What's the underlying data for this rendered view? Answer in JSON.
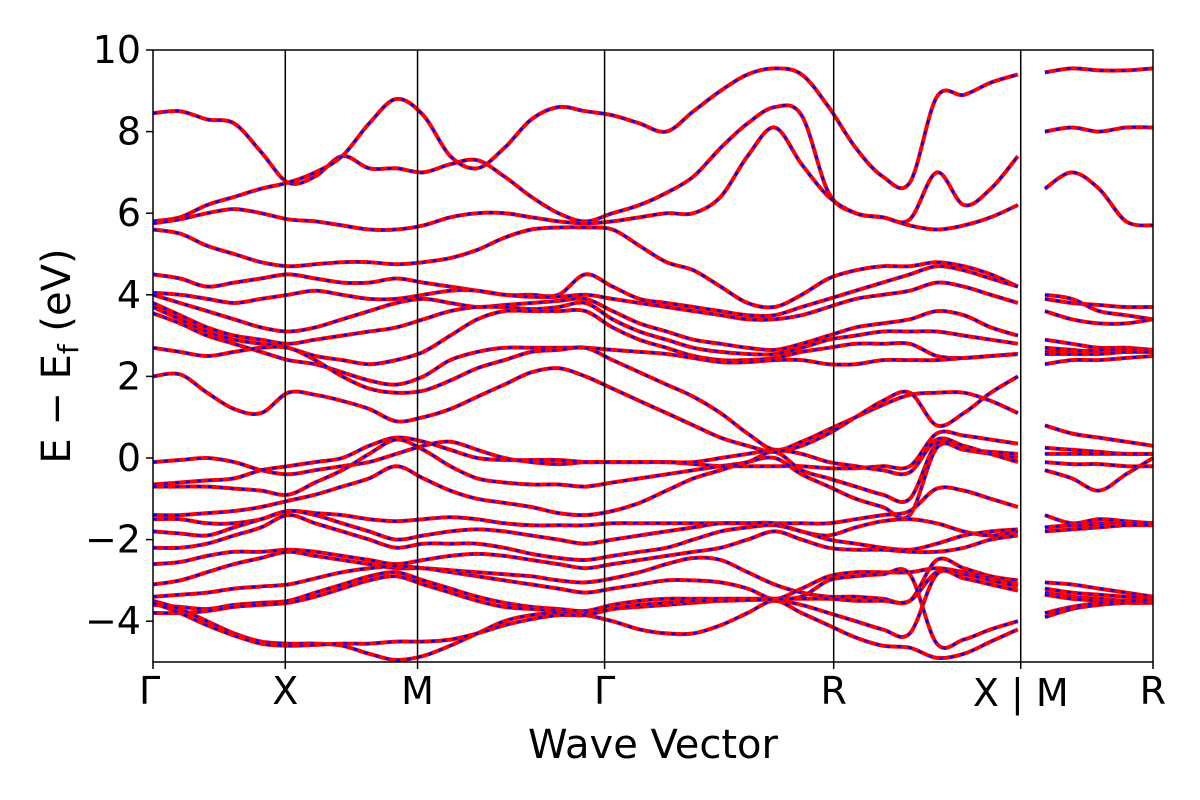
{
  "chart_data": {
    "type": "line",
    "title": "",
    "xlabel": "Wave Vector",
    "ylabel": {
      "prefix": "E − E",
      "subscript": "f",
      "suffix": " (eV)"
    },
    "ylim": [
      -5,
      10
    ],
    "yticks": [
      10,
      8,
      6,
      4,
      2,
      0,
      -2,
      -4
    ],
    "ytick_labels": [
      "10",
      "8",
      "6",
      "4",
      "2",
      "0",
      "−2",
      "−4"
    ],
    "grid": false,
    "legend": "none",
    "colors": {
      "line_solid": "#ff0000",
      "line_dash": "#0000ff",
      "axis": "#000000"
    },
    "kpath": {
      "labels": [
        "Γ",
        "X",
        "M",
        "Γ",
        "R",
        "X | M",
        "R"
      ],
      "positions": [
        0,
        0.5,
        1.0,
        1.707,
        2.573,
        3.28,
        3.78
      ],
      "segment_breaks": [
        3.28
      ]
    },
    "bands": [
      [
        8.45,
        8.5,
        8.3,
        8.2,
        7.5,
        6.75,
        6.9,
        7.4,
        7.1,
        7.1,
        7.0,
        7.2,
        7.3,
        6.9,
        6.4,
        6.0,
        5.8,
        6.0,
        6.2,
        6.5,
        6.9,
        7.6,
        8.2,
        8.6,
        8.4,
        6.5,
        6.0,
        5.9,
        5.7,
        5.6,
        5.7,
        5.9,
        6.2,
        6.6,
        7.0,
        6.6,
        5.8,
        5.7
      ],
      [
        5.8,
        5.9,
        6.2,
        6.4,
        6.6,
        6.75,
        7.0,
        7.4,
        8.2,
        8.8,
        8.4,
        7.4,
        7.1,
        7.6,
        8.3,
        8.6,
        8.5,
        8.4,
        8.2,
        8.0,
        8.5,
        9.0,
        9.4,
        9.55,
        9.4,
        8.6,
        7.6,
        6.9,
        6.75,
        8.85,
        8.9,
        9.2,
        9.4,
        9.45,
        9.55,
        9.5,
        9.5,
        9.55
      ],
      [
        5.75,
        5.85,
        6.0,
        6.1,
        6.0,
        5.85,
        5.8,
        5.7,
        5.6,
        5.6,
        5.7,
        5.9,
        6.0,
        6.0,
        5.9,
        5.8,
        5.75,
        5.8,
        5.9,
        6.0,
        6.0,
        6.4,
        7.4,
        8.1,
        7.2,
        6.4,
        6.0,
        5.9,
        5.85,
        7.0,
        6.2,
        6.6,
        7.4,
        8.0,
        8.1,
        8.0,
        8.1,
        8.1
      ],
      [
        5.6,
        5.5,
        5.2,
        5.0,
        4.8,
        4.7,
        4.75,
        4.8,
        4.8,
        4.75,
        4.8,
        4.9,
        5.1,
        5.4,
        5.6,
        5.65,
        5.65,
        5.6,
        5.2,
        4.8,
        4.6,
        4.2,
        3.8,
        3.7,
        4.0,
        4.4,
        4.6,
        4.7,
        4.7,
        4.8,
        4.7,
        4.5,
        4.2,
        3.9,
        3.8,
        3.75,
        3.7,
        3.7
      ],
      [
        4.5,
        4.4,
        4.2,
        4.3,
        4.4,
        4.5,
        4.4,
        4.3,
        4.3,
        4.4,
        4.3,
        4.2,
        4.1,
        4.0,
        4.0,
        4.0,
        4.5,
        4.2,
        3.9,
        3.8,
        3.7,
        3.6,
        3.5,
        3.5,
        3.7,
        3.9,
        4.1,
        4.3,
        4.5,
        4.7,
        4.6,
        4.4,
        4.2,
        4.0,
        3.9,
        3.6,
        3.5,
        3.4
      ],
      [
        4.05,
        4.0,
        3.9,
        3.8,
        3.9,
        4.0,
        4.1,
        4.0,
        3.9,
        3.9,
        4.0,
        4.1,
        4.1,
        4.0,
        3.95,
        3.95,
        4.0,
        3.9,
        3.8,
        3.7,
        3.6,
        3.5,
        3.4,
        3.4,
        3.5,
        3.7,
        3.9,
        4.0,
        4.1,
        4.3,
        4.2,
        4.0,
        3.8,
        3.6,
        3.4,
        3.3,
        3.3,
        3.4
      ],
      [
        4.0,
        3.8,
        3.6,
        3.4,
        3.2,
        3.1,
        3.2,
        3.4,
        3.6,
        3.8,
        3.9,
        3.8,
        3.7,
        3.75,
        3.8,
        3.85,
        3.9,
        3.6,
        3.3,
        3.1,
        2.9,
        2.8,
        2.7,
        2.65,
        2.8,
        3.0,
        3.2,
        3.3,
        3.4,
        3.6,
        3.5,
        3.2,
        3.0,
        2.9,
        2.8,
        2.7,
        2.7,
        2.65
      ],
      [
        3.8,
        3.5,
        3.2,
        3.0,
        2.9,
        2.8,
        2.9,
        3.0,
        3.1,
        3.2,
        3.4,
        3.6,
        3.7,
        3.7,
        3.65,
        3.7,
        3.8,
        3.4,
        3.1,
        2.9,
        2.7,
        2.6,
        2.55,
        2.55,
        2.7,
        2.9,
        3.0,
        3.1,
        3.1,
        3.1,
        3.0,
        2.9,
        2.8,
        2.7,
        2.65,
        2.6,
        2.6,
        2.6
      ],
      [
        3.7,
        3.4,
        3.1,
        2.9,
        2.8,
        2.7,
        2.5,
        2.4,
        2.3,
        2.4,
        2.6,
        3.0,
        3.4,
        3.6,
        3.6,
        3.6,
        3.6,
        3.2,
        2.9,
        2.7,
        2.5,
        2.4,
        2.4,
        2.45,
        2.6,
        2.7,
        2.8,
        2.8,
        2.8,
        2.5,
        2.45,
        2.5,
        2.55,
        2.6,
        2.6,
        2.65,
        2.65,
        2.65
      ],
      [
        3.55,
        3.3,
        3.0,
        2.8,
        2.6,
        2.4,
        2.3,
        2.1,
        1.9,
        1.8,
        2.0,
        2.4,
        2.6,
        2.7,
        2.7,
        2.7,
        2.7,
        2.65,
        2.6,
        2.55,
        2.45,
        2.35,
        2.35,
        2.4,
        2.4,
        2.3,
        2.3,
        2.4,
        2.4,
        2.4,
        2.45,
        2.5,
        2.55,
        2.55,
        2.55,
        2.55,
        2.6,
        2.6
      ],
      [
        2.7,
        2.6,
        2.5,
        2.6,
        2.7,
        2.7,
        2.4,
        2.0,
        1.7,
        1.6,
        1.65,
        1.9,
        2.2,
        2.4,
        2.6,
        2.65,
        2.7,
        2.4,
        2.1,
        1.8,
        1.5,
        1.1,
        0.6,
        0.2,
        0.4,
        0.7,
        1.0,
        1.3,
        1.55,
        1.6,
        1.6,
        1.4,
        1.1,
        0.8,
        0.6,
        0.5,
        0.4,
        0.3
      ],
      [
        2.0,
        2.05,
        1.6,
        1.2,
        1.1,
        1.6,
        1.55,
        1.4,
        1.2,
        0.9,
        1.0,
        1.2,
        1.5,
        1.8,
        2.1,
        2.2,
        2.0,
        1.7,
        1.4,
        1.1,
        0.8,
        0.5,
        0.3,
        0.15,
        0.3,
        0.6,
        1.0,
        1.4,
        1.6,
        0.8,
        1.1,
        1.6,
        2.0,
        2.3,
        2.4,
        2.4,
        2.45,
        2.5
      ],
      [
        -0.1,
        -0.05,
        0.0,
        -0.1,
        -0.3,
        -0.4,
        -0.3,
        -0.2,
        -0.1,
        0.1,
        0.3,
        0.4,
        0.2,
        0.0,
        -0.1,
        -0.15,
        -0.1,
        -0.1,
        -0.1,
        -0.1,
        -0.15,
        -0.2,
        -0.2,
        -0.2,
        -0.2,
        -0.25,
        -0.25,
        -0.2,
        -0.2,
        0.6,
        0.55,
        0.45,
        0.35,
        0.25,
        0.2,
        0.15,
        0.1,
        0.1
      ],
      [
        -0.65,
        -0.6,
        -0.55,
        -0.5,
        -0.3,
        -0.2,
        -0.1,
        0.0,
        0.3,
        0.5,
        0.4,
        0.2,
        0.0,
        -0.05,
        -0.05,
        -0.05,
        -0.1,
        -0.1,
        -0.1,
        -0.1,
        -0.1,
        0.0,
        0.1,
        0.2,
        0.1,
        -0.1,
        -0.2,
        -0.3,
        -0.35,
        0.45,
        0.3,
        0.1,
        -0.1,
        -0.3,
        -0.5,
        -0.8,
        -0.4,
        0.0
      ],
      [
        -0.7,
        -0.7,
        -0.7,
        -0.75,
        -0.8,
        -0.9,
        -0.6,
        -0.3,
        0.1,
        0.45,
        0.2,
        -0.2,
        -0.5,
        -0.6,
        -0.65,
        -0.65,
        -0.7,
        -0.6,
        -0.5,
        -0.4,
        -0.3,
        -0.2,
        -0.1,
        0.15,
        -0.3,
        -0.5,
        -0.7,
        -0.9,
        -1.0,
        0.35,
        0.2,
        0.1,
        0.0,
        -0.1,
        -0.15,
        -0.15,
        -0.2,
        -0.2
      ],
      [
        -1.4,
        -1.4,
        -1.35,
        -1.3,
        -1.2,
        -1.05,
        -0.9,
        -0.7,
        -0.5,
        -0.2,
        -0.5,
        -0.8,
        -1.0,
        -1.1,
        -1.2,
        -1.35,
        -1.4,
        -1.3,
        -1.1,
        -0.8,
        -0.5,
        -0.3,
        -0.1,
        0.0,
        -0.4,
        -0.7,
        -1.0,
        -1.2,
        -1.4,
        0.25,
        0.2,
        0.15,
        0.1,
        0.1,
        0.1,
        0.1,
        0.1,
        0.1
      ],
      [
        -1.5,
        -1.5,
        -1.6,
        -1.6,
        -1.5,
        -1.3,
        -1.35,
        -1.4,
        -1.5,
        -1.55,
        -1.5,
        -1.45,
        -1.5,
        -1.6,
        -1.65,
        -1.65,
        -1.65,
        -1.6,
        -1.6,
        -1.6,
        -1.6,
        -1.6,
        -1.6,
        -1.6,
        -1.6,
        -1.6,
        -1.5,
        -1.4,
        -1.3,
        -0.75,
        -0.8,
        -1.0,
        -1.2,
        -1.4,
        -1.6,
        -1.5,
        -1.55,
        -1.6
      ],
      [
        -1.8,
        -1.85,
        -1.9,
        -1.7,
        -1.5,
        -1.3,
        -1.4,
        -1.6,
        -1.8,
        -2.0,
        -1.9,
        -1.8,
        -1.75,
        -1.8,
        -1.9,
        -2.0,
        -2.1,
        -2.0,
        -1.9,
        -1.8,
        -1.7,
        -1.6,
        -1.6,
        -1.6,
        -1.8,
        -1.9,
        -1.7,
        -1.55,
        -1.5,
        -1.6,
        -1.8,
        -1.9,
        -1.8,
        -1.7,
        -1.65,
        -1.6,
        -1.6,
        -1.6
      ],
      [
        -2.2,
        -2.2,
        -2.1,
        -1.9,
        -1.7,
        -1.4,
        -1.6,
        -1.8,
        -2.0,
        -2.2,
        -2.1,
        -2.1,
        -2.1,
        -2.2,
        -2.35,
        -2.45,
        -2.5,
        -2.4,
        -2.3,
        -2.2,
        -2.0,
        -1.8,
        -1.7,
        -1.65,
        -1.8,
        -2.0,
        -2.1,
        -2.2,
        -2.25,
        -2.1,
        -1.9,
        -1.8,
        -1.75,
        -1.7,
        -1.65,
        -1.65,
        -1.6,
        -1.6
      ],
      [
        -2.6,
        -2.55,
        -2.4,
        -2.3,
        -2.3,
        -2.25,
        -2.3,
        -2.4,
        -2.5,
        -2.6,
        -2.5,
        -2.4,
        -2.35,
        -2.4,
        -2.5,
        -2.6,
        -2.7,
        -2.6,
        -2.5,
        -2.4,
        -2.3,
        -2.2,
        -2.0,
        -1.8,
        -2.0,
        -2.2,
        -2.25,
        -2.25,
        -2.3,
        -2.3,
        -2.2,
        -2.0,
        -1.9,
        -1.8,
        -1.75,
        -1.7,
        -1.65,
        -1.65
      ],
      [
        -3.1,
        -3.0,
        -2.8,
        -2.6,
        -2.45,
        -2.3,
        -2.4,
        -2.5,
        -2.6,
        -2.7,
        -2.7,
        -2.75,
        -2.8,
        -2.85,
        -2.9,
        -3.0,
        -3.05,
        -2.95,
        -2.8,
        -2.6,
        -2.45,
        -2.5,
        -2.8,
        -3.1,
        -3.3,
        -3.4,
        -3.4,
        -3.45,
        -3.5,
        -2.5,
        -2.7,
        -2.9,
        -3.0,
        -3.05,
        -3.1,
        -3.2,
        -3.3,
        -3.4
      ],
      [
        -3.4,
        -3.35,
        -3.3,
        -3.2,
        -3.15,
        -3.1,
        -2.95,
        -2.8,
        -2.7,
        -2.65,
        -2.7,
        -2.8,
        -2.9,
        -3.0,
        -3.1,
        -3.2,
        -3.3,
        -3.2,
        -3.1,
        -3.0,
        -3.0,
        -3.05,
        -3.2,
        -3.45,
        -3.2,
        -2.9,
        -2.8,
        -2.8,
        -2.8,
        -2.7,
        -2.8,
        -2.95,
        -3.1,
        -3.2,
        -3.3,
        -3.35,
        -3.4,
        -3.45
      ],
      [
        -3.6,
        -3.65,
        -3.7,
        -3.6,
        -3.55,
        -3.5,
        -3.3,
        -3.1,
        -2.9,
        -2.8,
        -3.0,
        -3.2,
        -3.4,
        -3.55,
        -3.65,
        -3.7,
        -3.75,
        -3.6,
        -3.5,
        -3.45,
        -3.45,
        -3.45,
        -3.45,
        -3.45,
        -3.45,
        -3.45,
        -3.5,
        -3.5,
        -3.5,
        -2.8,
        -2.85,
        -3.0,
        -3.15,
        -3.3,
        -3.4,
        -3.45,
        -3.5,
        -3.5
      ],
      [
        -3.8,
        -3.8,
        -3.75,
        -3.65,
        -3.6,
        -3.55,
        -3.4,
        -3.2,
        -3.0,
        -2.9,
        -3.1,
        -3.3,
        -3.5,
        -3.65,
        -3.7,
        -3.75,
        -3.8,
        -3.7,
        -3.65,
        -3.6,
        -3.55,
        -3.5,
        -3.48,
        -3.48,
        -3.6,
        -3.8,
        -4.0,
        -4.2,
        -4.3,
        -2.85,
        -2.95,
        -3.1,
        -3.25,
        -3.35,
        -3.45,
        -3.5,
        -3.55,
        -3.55
      ],
      [
        -3.5,
        -3.7,
        -4.0,
        -4.3,
        -4.5,
        -4.55,
        -4.55,
        -4.6,
        -4.8,
        -4.95,
        -4.85,
        -4.6,
        -4.3,
        -4.0,
        -3.85,
        -3.8,
        -3.85,
        -4.0,
        -4.2,
        -4.3,
        -4.3,
        -4.1,
        -3.8,
        -3.5,
        -3.8,
        -4.1,
        -4.4,
        -4.6,
        -4.65,
        -4.9,
        -4.8,
        -4.5,
        -4.2,
        -3.9,
        -3.7,
        -3.6,
        -3.55,
        -3.5
      ],
      [
        -3.55,
        -3.8,
        -4.1,
        -4.35,
        -4.55,
        -4.6,
        -4.58,
        -4.55,
        -4.55,
        -4.5,
        -4.5,
        -4.45,
        -4.3,
        -4.1,
        -3.95,
        -3.85,
        -3.85,
        -3.7,
        -3.6,
        -3.55,
        -3.5,
        -3.5,
        -3.48,
        -3.46,
        -3.4,
        -3.0,
        -2.9,
        -2.85,
        -2.85,
        -4.55,
        -4.45,
        -4.2,
        -4.0,
        -3.8,
        -3.65,
        -3.55,
        -3.5,
        -3.48
      ]
    ]
  }
}
